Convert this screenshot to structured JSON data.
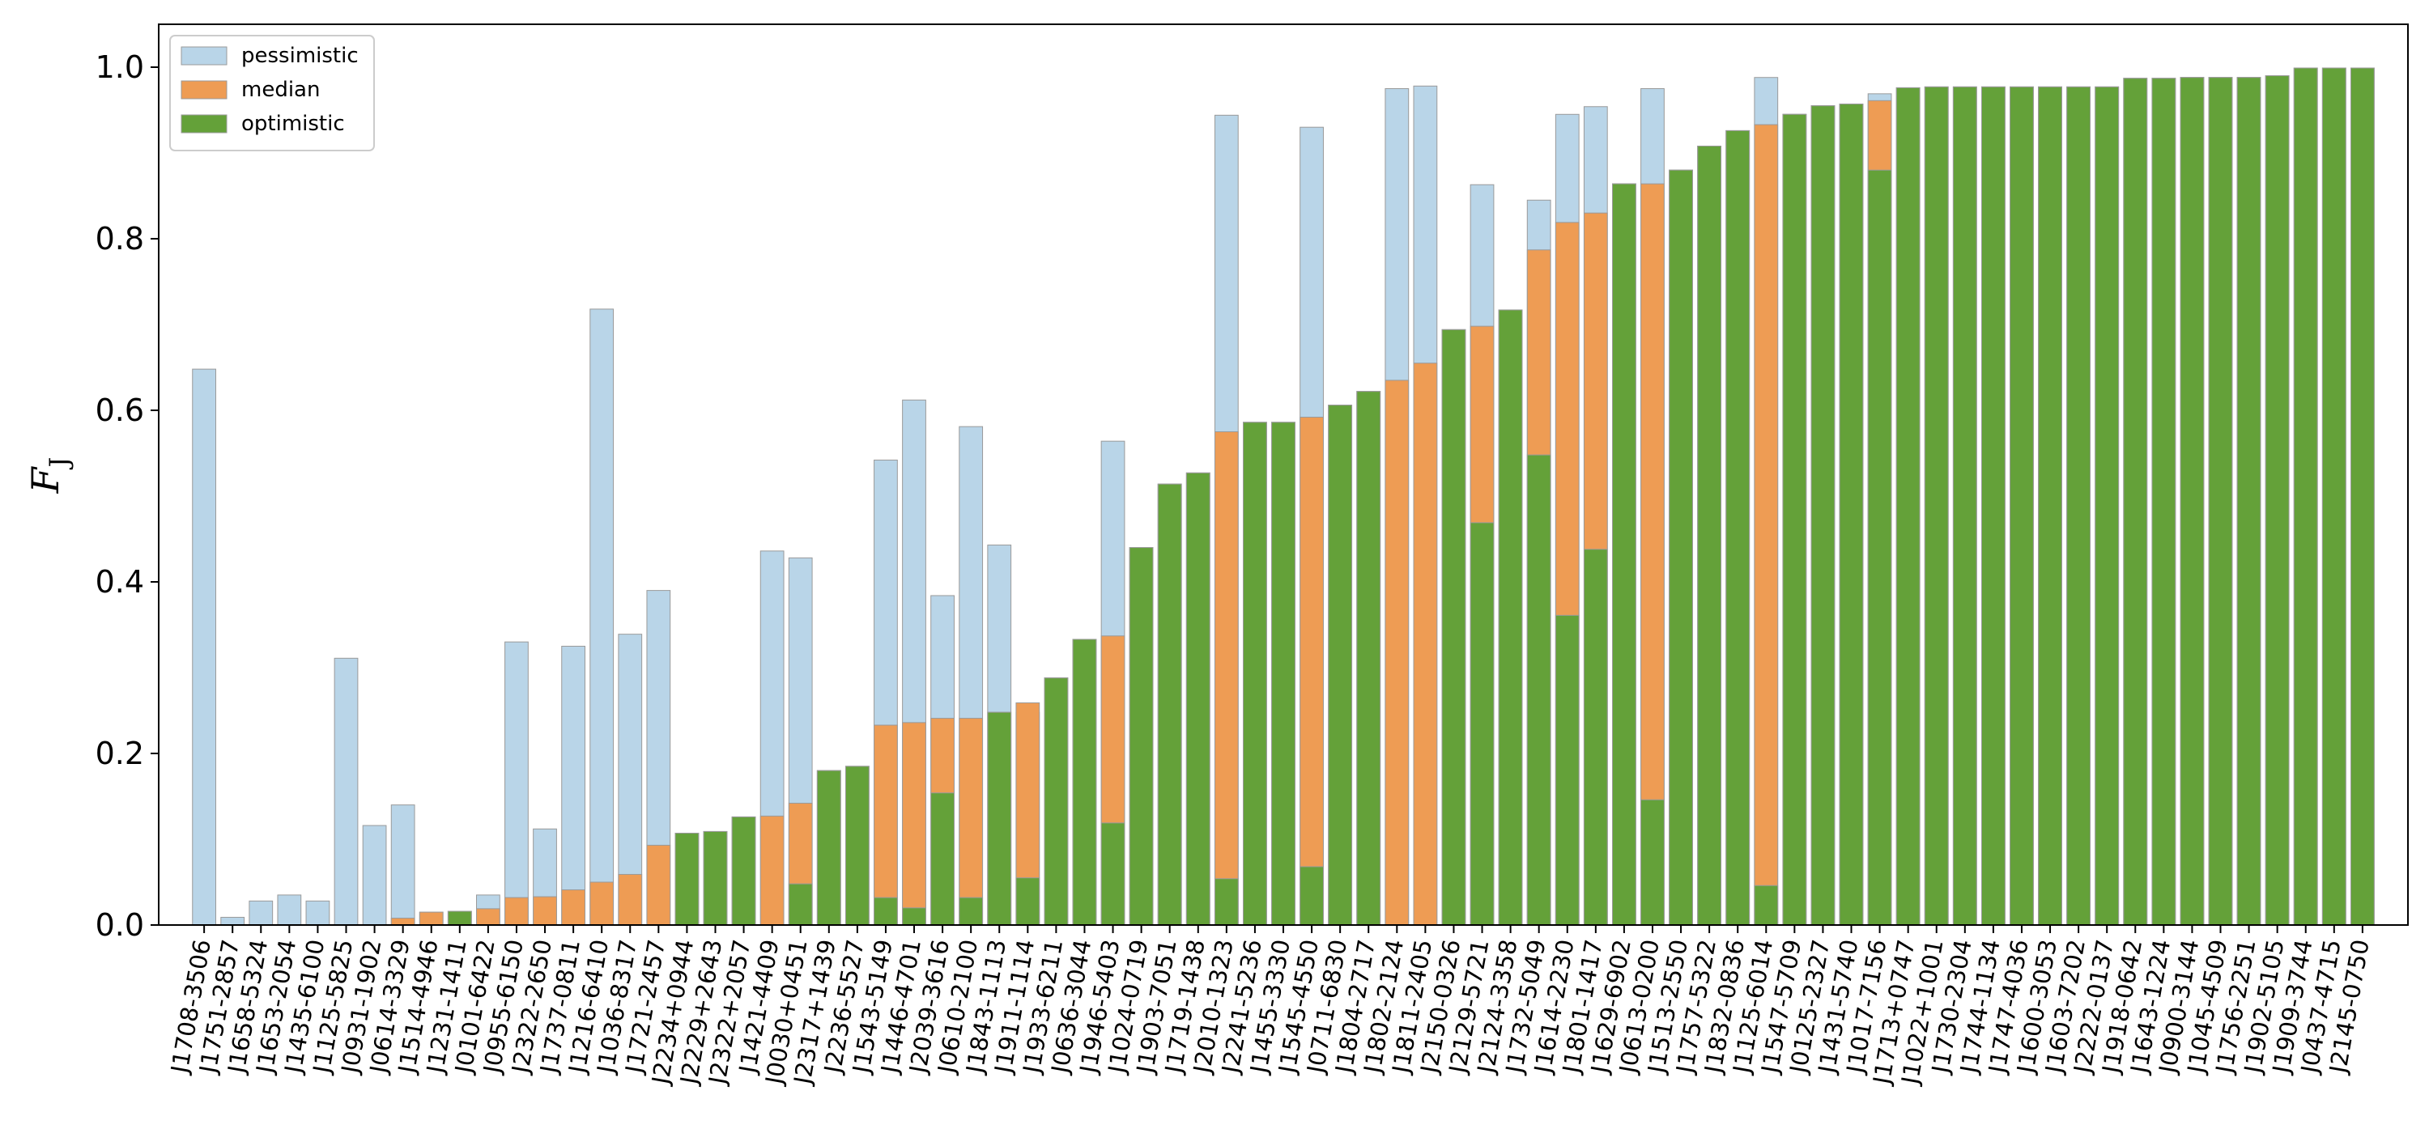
{
  "chart_data": {
    "type": "bar",
    "ylabel": "F",
    "ylabel_subscript": "J",
    "ylim": [
      0,
      1.05
    ],
    "yticks": [
      "0.0",
      "0.2",
      "0.4",
      "0.6",
      "0.8",
      "1.0"
    ],
    "grid": false,
    "legend_position": "top-left",
    "colors": {
      "pessimistic": "#b9d5e8",
      "median": "#ee9c54",
      "optimistic": "#64a139",
      "edge": "#9a9a9a"
    },
    "categories": [
      "J1708-3506",
      "J1751-2857",
      "J1658-5324",
      "J1653-2054",
      "J1435-6100",
      "J1125-5825",
      "J0931-1902",
      "J0614-3329",
      "J1514-4946",
      "J1231-1411",
      "J0101-6422",
      "J0955-6150",
      "J2322-2650",
      "J1737-0811",
      "J1216-6410",
      "J1036-8317",
      "J1721-2457",
      "J2234+0944",
      "J2229+2643",
      "J2322+2057",
      "J1421-4409",
      "J0030+0451",
      "J2317+1439",
      "J2236-5527",
      "J1543-5149",
      "J1446-4701",
      "J2039-3616",
      "J0610-2100",
      "J1843-1113",
      "J1911-1114",
      "J1933-6211",
      "J0636-3044",
      "J1946-5403",
      "J1024-0719",
      "J1903-7051",
      "J1719-1438",
      "J2010-1323",
      "J2241-5236",
      "J1455-3330",
      "J1545-4550",
      "J0711-6830",
      "J1804-2717",
      "J1802-2124",
      "J1811-2405",
      "J2150-0326",
      "J2129-5721",
      "J2124-3358",
      "J1732-5049",
      "J1614-2230",
      "J1801-1417",
      "J1629-6902",
      "J0613-0200",
      "J1513-2550",
      "J1757-5322",
      "J1832-0836",
      "J1125-6014",
      "J1547-5709",
      "J0125-2327",
      "J1431-5740",
      "J1017-7156",
      "J1713+0747",
      "J1022+1001",
      "J1730-2304",
      "J1744-1134",
      "J1747-4036",
      "J1600-3053",
      "J1603-7202",
      "J2222-0137",
      "J1918-0642",
      "J1643-1224",
      "J0900-3144",
      "J1045-4509",
      "J1756-2251",
      "J1902-5105",
      "J1909-3744",
      "J0437-4715",
      "J2145-0750"
    ],
    "series": [
      {
        "name": "pessimistic",
        "values": [
          0.648,
          0.009,
          0.028,
          0.035,
          0.028,
          0.311,
          0.116,
          0.14,
          0.015,
          0.016,
          0.035,
          0.33,
          0.112,
          0.325,
          0.718,
          0.339,
          0.39,
          0.107,
          0.109,
          0.126,
          0.436,
          0.428,
          0.18,
          0.185,
          0.542,
          0.612,
          0.384,
          0.581,
          0.443,
          0.248,
          0.288,
          0.333,
          0.564,
          0.44,
          0.514,
          0.527,
          0.944,
          0.586,
          0.586,
          0.93,
          0.606,
          0.622,
          0.975,
          0.978,
          0.694,
          0.863,
          0.717,
          0.845,
          0.945,
          0.954,
          0.864,
          0.975,
          0.88,
          0.908,
          0.926,
          0.988,
          0.945,
          0.955,
          0.957,
          0.969,
          0.976,
          0.977,
          0.977,
          0.977,
          0.977,
          0.977,
          0.977,
          0.977,
          0.987,
          0.987,
          0.988,
          0.988,
          0.988,
          0.99,
          0.999,
          0.999,
          0.999
        ]
      },
      {
        "name": "median",
        "values": [
          0,
          0,
          0,
          0,
          0,
          0,
          0,
          0.008,
          0.015,
          0.016,
          0.019,
          0.032,
          0.033,
          0.041,
          0.05,
          0.059,
          0.093,
          0.107,
          0.109,
          0.126,
          0.127,
          0.142,
          0.18,
          0.185,
          0.233,
          0.236,
          0.241,
          0.241,
          0.248,
          0.259,
          0.288,
          0.333,
          0.337,
          0.44,
          0.514,
          0.527,
          0.575,
          0.586,
          0.586,
          0.592,
          0.606,
          0.622,
          0.635,
          0.655,
          0.694,
          0.698,
          0.717,
          0.787,
          0.819,
          0.83,
          0.864,
          0.864,
          0.88,
          0.908,
          0.926,
          0.933,
          0.945,
          0.955,
          0.957,
          0.961,
          0.976,
          0.977,
          0.977,
          0.977,
          0.977,
          0.977,
          0.977,
          0.977,
          0.987,
          0.987,
          0.988,
          0.988,
          0.988,
          0.99,
          0.999,
          0.999,
          0.999
        ]
      },
      {
        "name": "optimistic",
        "values": [
          0,
          0,
          0,
          0,
          0,
          0,
          0,
          0,
          0,
          0.016,
          0,
          0,
          0,
          0,
          0,
          0,
          0,
          0.107,
          0.109,
          0.126,
          0,
          0.048,
          0.18,
          0.185,
          0.032,
          0.02,
          0.154,
          0.032,
          0.248,
          0.055,
          0.288,
          0.333,
          0.119,
          0.44,
          0.514,
          0.527,
          0.054,
          0.586,
          0.586,
          0.068,
          0.606,
          0.622,
          0,
          0,
          0.694,
          0.469,
          0.717,
          0.548,
          0.361,
          0.438,
          0.864,
          0.146,
          0.88,
          0.908,
          0.926,
          0.046,
          0.945,
          0.955,
          0.957,
          0.88,
          0.976,
          0.977,
          0.977,
          0.977,
          0.977,
          0.977,
          0.977,
          0.977,
          0.987,
          0.987,
          0.988,
          0.988,
          0.988,
          0.99,
          0.999,
          0.999,
          0.999
        ]
      }
    ]
  }
}
